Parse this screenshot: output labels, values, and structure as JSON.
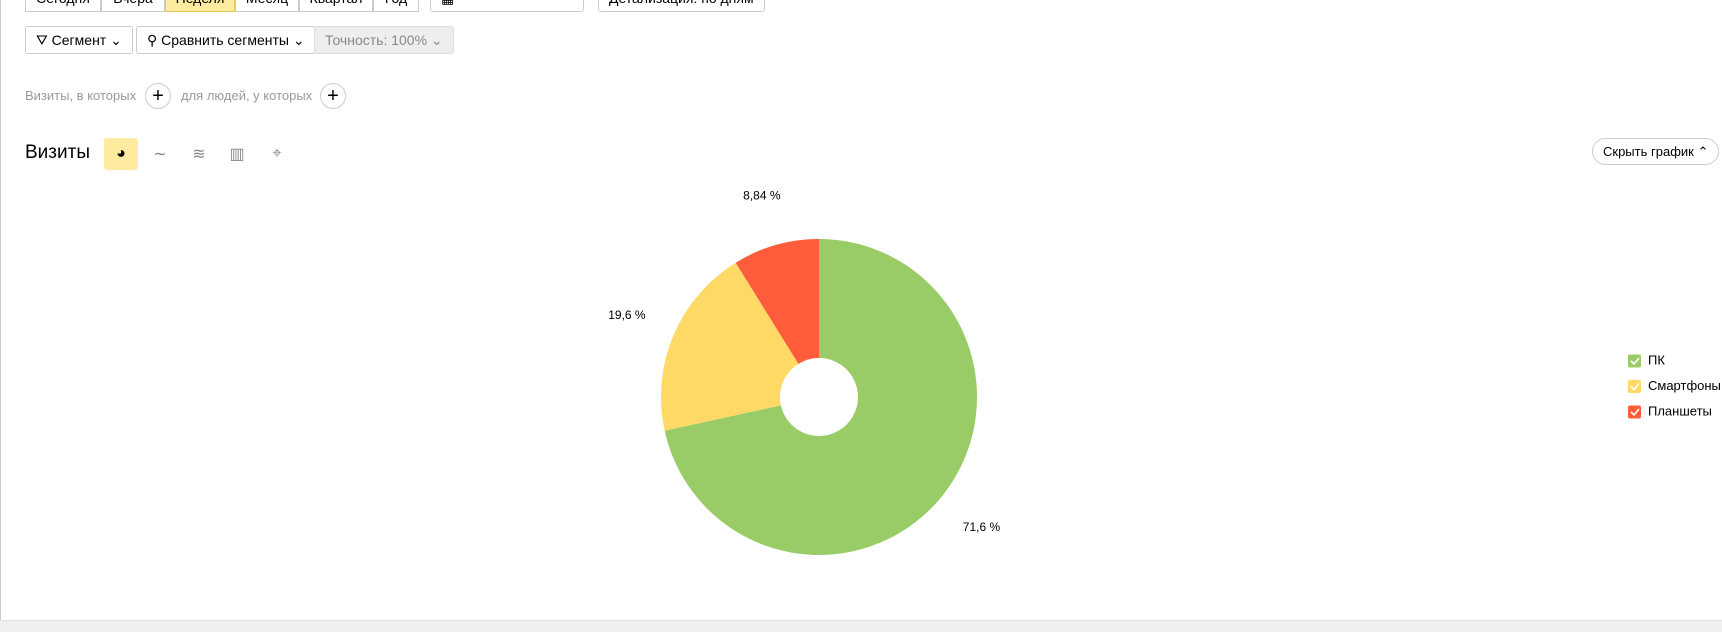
{
  "toolbar": {
    "periods": [
      "Сегодня",
      "Вчера",
      "Неделя",
      "Месяц",
      "Квартал",
      "Год"
    ],
    "detail": "Детализация: по дням",
    "segment": "Сегмент",
    "compare": "Сравнить сегменты",
    "accuracy": "Точность: 100%"
  },
  "filter": {
    "visits": "Визиты, в которых",
    "people": "для людей, у которых"
  },
  "hide_chart": "Скрыть график",
  "chart_data": {
    "type": "pie",
    "title": "Визиты",
    "categories": [
      "ПК",
      "Смартфоны",
      "Планшеты"
    ],
    "values": [
      71.6,
      19.6,
      8.84
    ],
    "value_labels": [
      "71,6 %",
      "19,6 %",
      "8,84 %"
    ],
    "colors": [
      "#99cc66",
      "#ffd966",
      "#ff5c3b"
    ]
  }
}
